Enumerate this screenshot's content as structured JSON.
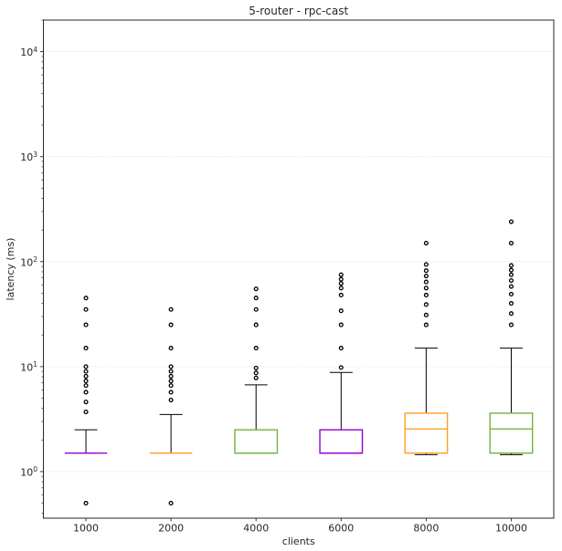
{
  "title": "5-router - rpc-cast",
  "chart_data": {
    "type": "boxplot",
    "title": "5-router - rpc-cast",
    "xlabel": "clients",
    "ylabel": "latency (ms)",
    "y_scale": "log",
    "y_tick_exponents": [
      0,
      1,
      2,
      3,
      4
    ],
    "y_range": [
      0.36,
      20000
    ],
    "grid": "dotted horizontal lines at major y ticks",
    "grid_color": "#cfcfcf",
    "spine_color": "#262626",
    "whisker_color": "#000000",
    "flier_color": "#000000",
    "categories": [
      "1000",
      "2000",
      "4000",
      "6000",
      "8000",
      "10000"
    ],
    "series": [
      {
        "category": "1000",
        "color": "#9400d3",
        "q1": 1.5,
        "median": 1.5,
        "q3": 1.5,
        "whisker_low": 1.5,
        "whisker_high": 2.5,
        "outliers": [
          0.5,
          3.7,
          4.6,
          5.7,
          6.6,
          7.3,
          8.1,
          9.0,
          10,
          15,
          25,
          35,
          45
        ]
      },
      {
        "category": "2000",
        "color": "#ffa024",
        "q1": 1.5,
        "median": 1.5,
        "q3": 1.5,
        "whisker_low": 1.5,
        "whisker_high": 3.5,
        "outliers": [
          0.5,
          4.8,
          5.7,
          6.6,
          7.3,
          8.1,
          9.0,
          10,
          15,
          25,
          35
        ]
      },
      {
        "category": "4000",
        "color": "#73b33d",
        "q1": 1.5,
        "median": 1.5,
        "q3": 2.5,
        "whisker_low": 1.5,
        "whisker_high": 6.7,
        "outliers": [
          7.8,
          8.7,
          9.7,
          15,
          25,
          35,
          45,
          55
        ]
      },
      {
        "category": "6000",
        "color": "#9400d3",
        "q1": 1.5,
        "median": 1.5,
        "q3": 2.5,
        "whisker_low": 1.5,
        "whisker_high": 8.8,
        "outliers": [
          9.8,
          15,
          25,
          34,
          48,
          56,
          62,
          68,
          75
        ]
      },
      {
        "category": "8000",
        "color": "#ffa024",
        "q1": 1.5,
        "median": 2.55,
        "q3": 3.6,
        "whisker_low": 1.45,
        "whisker_high": 15,
        "outliers": [
          25,
          31,
          39,
          48,
          56,
          64,
          73,
          82,
          94,
          150
        ]
      },
      {
        "category": "10000",
        "color": "#73b33d",
        "q1": 1.5,
        "median": 2.55,
        "q3": 3.6,
        "whisker_low": 1.45,
        "whisker_high": 15,
        "outliers": [
          25,
          32,
          40,
          49,
          58,
          66,
          75,
          83,
          92,
          150,
          240
        ]
      }
    ]
  }
}
